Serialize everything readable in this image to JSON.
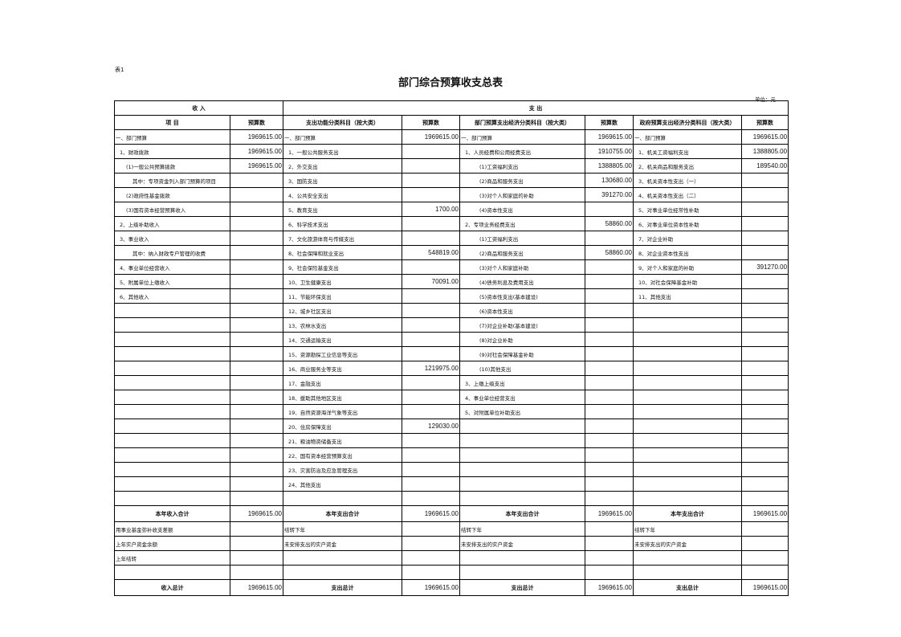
{
  "doc": {
    "table_no": "表1",
    "title": "部门综合预算收支总表",
    "unit": "单位：元"
  },
  "header": {
    "income_group": "收                    入",
    "expense_group": "支                              出",
    "cols": [
      "项        目",
      "预算数",
      "支出功能分类科目（按大类）",
      "预算数",
      "部门预算支出经济分类科目（按大类）",
      "预算数",
      "政府预算支出经济分类科目（按大类）",
      "预算数"
    ]
  },
  "rows": [
    [
      "一、部门预算",
      "1969615.00",
      "一、部门预算",
      "1969615.00",
      "一、部门预算",
      "1969615.00",
      "一、部门预算",
      "1969615.00"
    ],
    [
      "1、财政拨款",
      "1969615.00",
      "1、一般公共服务支出",
      "",
      "1、人员经费和公用经费支出",
      "1910755.00",
      "1、机关工资福利支出",
      "1388805.00"
    ],
    [
      "(1)一般公共预算拨款",
      "1969615.00",
      "2、外交支出",
      "",
      "(1)工资福利支出",
      "1388805.00",
      "2、机关商品和服务支出",
      "189540.00"
    ],
    [
      "其中：专项资金列入部门预算的项目",
      "",
      "3、国防支出",
      "",
      "(2)商品和服务支出",
      "130680.00",
      "3、机关资本性支出（一）",
      ""
    ],
    [
      "(2)政府性基金拨款",
      "",
      "4、公共安全支出",
      "",
      "(3)对个人和家庭的补助",
      "391270.00",
      "4、机关资本性支出（二）",
      ""
    ],
    [
      "(3)国有资本经营预算收入",
      "",
      "5、教育支出",
      "1700.00",
      "(4)资本性支出",
      "",
      "5、对事业单位经常性补助",
      ""
    ],
    [
      "2、上级补助收入",
      "",
      "6、科学技术支出",
      "",
      "2、专项业务经费支出",
      "58860.00",
      "6、对事业单位资本性补助",
      ""
    ],
    [
      "3、事业收入",
      "",
      "7、文化旅游体育与传媒支出",
      "",
      "(1)工资福利支出",
      "",
      "7、对企业补助",
      ""
    ],
    [
      "其中：纳入财政专户管理的收费",
      "",
      "8、社会保障和就业支出",
      "548819.00",
      "(2)商品和服务支出",
      "58860.00",
      "8、对企业资本性支出",
      ""
    ],
    [
      "4、事业单位经营收入",
      "",
      "9、社会保险基金支出",
      "",
      "(3)对个人和家庭补助",
      "",
      "9、对个人和家庭的补助",
      "391270.00"
    ],
    [
      "5、附属单位上缴收入",
      "",
      "10、卫生健康支出",
      "70091.00",
      "(4)债务利息及费用支出",
      "",
      "10、对社会保障基金补助",
      ""
    ],
    [
      "6、其他收入",
      "",
      "11、节能环保支出",
      "",
      "(5)资本性支出(基本建设)",
      "",
      "11、其他支出",
      ""
    ],
    [
      "",
      "",
      "12、城乡社区支出",
      "",
      "(6)资本性支出",
      "",
      "",
      ""
    ],
    [
      "",
      "",
      "13、农林水支出",
      "",
      "(7)对企业补助(基本建设)",
      "",
      "",
      ""
    ],
    [
      "",
      "",
      "14、交通运输支出",
      "",
      "(8)对企业补助",
      "",
      "",
      ""
    ],
    [
      "",
      "",
      "15、资源勘探工业信息等支出",
      "",
      "(9)对社会保障基金补助",
      "",
      "",
      ""
    ],
    [
      "",
      "",
      "16、商业服务业等支出",
      "1219975.00",
      "(10)其他支出",
      "",
      "",
      ""
    ],
    [
      "",
      "",
      "17、金融支出",
      "",
      "3、上缴上级支出",
      "",
      "",
      ""
    ],
    [
      "",
      "",
      "18、援助其他地区支出",
      "",
      "4、事业单位经营支出",
      "",
      "",
      ""
    ],
    [
      "",
      "",
      "19、自然资源海洋气象等支出",
      "",
      "5、对附属单位补助支出",
      "",
      "",
      ""
    ],
    [
      "",
      "",
      "20、住房保障支出",
      "129030.00",
      "",
      "",
      "",
      ""
    ],
    [
      "",
      "",
      "21、粮油物资储备支出",
      "",
      "",
      "",
      "",
      ""
    ],
    [
      "",
      "",
      "22、国有资本经营预算支出",
      "",
      "",
      "",
      "",
      ""
    ],
    [
      "",
      "",
      "23、灾害防治及应急管理支出",
      "",
      "",
      "",
      "",
      ""
    ],
    [
      "",
      "",
      "24、其他支出",
      "",
      "",
      "",
      "",
      ""
    ],
    [
      "",
      "",
      "",
      "",
      "",
      "",
      "",
      ""
    ]
  ],
  "year_total": [
    "本年收入合计",
    "1969615.00",
    "本年支出合计",
    "1969615.00",
    "本年支出合计",
    "1969615.00",
    "本年支出合计",
    "1969615.00"
  ],
  "footer_rows": [
    [
      "用事业基金弥补收支差额",
      "",
      "结转下年",
      "",
      "结转下年",
      "",
      "结转下年",
      ""
    ],
    [
      "上年实户资金余额",
      "",
      "未安排支出的实户资金",
      "",
      "未安排支出的实户资金",
      "",
      "未安排支出的实户资金",
      ""
    ],
    [
      "上年结转",
      "",
      "",
      "",
      "",
      "",
      "",
      ""
    ],
    [
      "",
      "",
      "",
      "",
      "",
      "",
      "",
      ""
    ]
  ],
  "grand_total": [
    "收入总计",
    "1969615.00",
    "支出总计",
    "1969615.00",
    "支出总计",
    "1969615.00",
    "支出总计",
    "1969615.00"
  ]
}
